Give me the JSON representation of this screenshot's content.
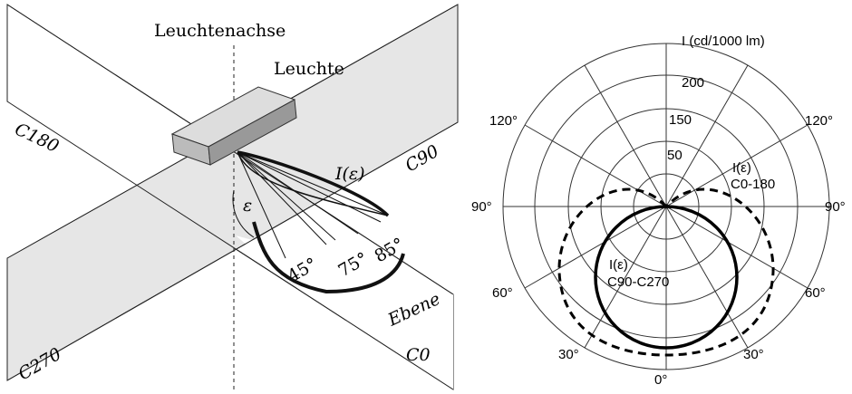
{
  "left": {
    "axis_label": "Leuchtenachse",
    "luminaire": "Leuchte",
    "plane_c180": "C180",
    "plane_c90": "C90",
    "plane_c270": "C270",
    "intensity": "I(ε)",
    "angle": "ε",
    "angle_45": "45°",
    "angle_75": "75°",
    "angle_85": "85°",
    "plane_label": "Ebene",
    "plane_c0": "C0"
  },
  "right": {
    "unit": "I (cd/1000 lm)",
    "radial_200": "200",
    "radial_150": "150",
    "radial_50": "50",
    "curve_c0_label": "I(ε)",
    "curve_c0_name": "C0-180",
    "curve_c90_label": "I(ε)",
    "curve_c90_name": "C90-C270",
    "angle_120_left": "120°",
    "angle_120_right": "120°",
    "angle_90_left": "90°",
    "angle_90_right": "90°",
    "angle_60_left": "60°",
    "angle_60_right": "60°",
    "angle_30_left": "30°",
    "angle_30_right": "30°",
    "angle_0": "0°"
  }
}
